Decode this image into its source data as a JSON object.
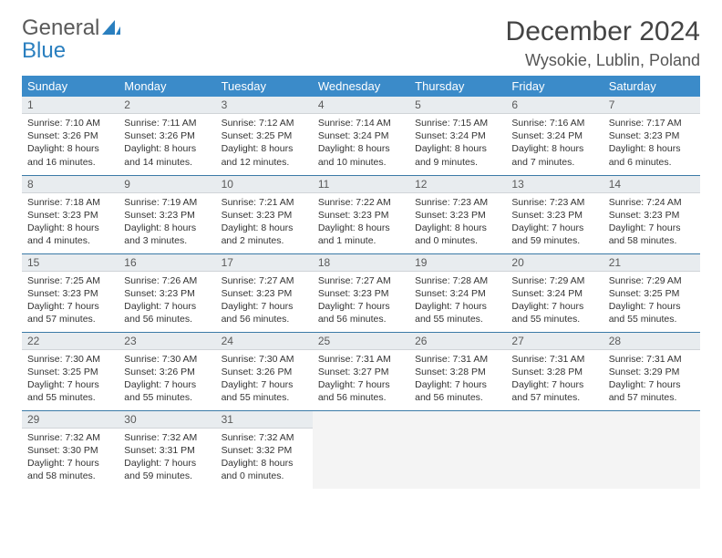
{
  "logo": {
    "line1": "General",
    "line2": "Blue"
  },
  "title": "December 2024",
  "location": "Wysokie, Lublin, Poland",
  "colors": {
    "header_bg": "#3b8bc9",
    "header_text": "#ffffff",
    "row_divider": "#3b7aa7",
    "daynum_bg": "#e8ecef",
    "logo_gray": "#5a5a5a",
    "logo_blue": "#2a7fbf"
  },
  "weekdays": [
    "Sunday",
    "Monday",
    "Tuesday",
    "Wednesday",
    "Thursday",
    "Friday",
    "Saturday"
  ],
  "days": [
    {
      "n": 1,
      "sunrise": "7:10 AM",
      "sunset": "3:26 PM",
      "daylight": "8 hours and 16 minutes."
    },
    {
      "n": 2,
      "sunrise": "7:11 AM",
      "sunset": "3:26 PM",
      "daylight": "8 hours and 14 minutes."
    },
    {
      "n": 3,
      "sunrise": "7:12 AM",
      "sunset": "3:25 PM",
      "daylight": "8 hours and 12 minutes."
    },
    {
      "n": 4,
      "sunrise": "7:14 AM",
      "sunset": "3:24 PM",
      "daylight": "8 hours and 10 minutes."
    },
    {
      "n": 5,
      "sunrise": "7:15 AM",
      "sunset": "3:24 PM",
      "daylight": "8 hours and 9 minutes."
    },
    {
      "n": 6,
      "sunrise": "7:16 AM",
      "sunset": "3:24 PM",
      "daylight": "8 hours and 7 minutes."
    },
    {
      "n": 7,
      "sunrise": "7:17 AM",
      "sunset": "3:23 PM",
      "daylight": "8 hours and 6 minutes."
    },
    {
      "n": 8,
      "sunrise": "7:18 AM",
      "sunset": "3:23 PM",
      "daylight": "8 hours and 4 minutes."
    },
    {
      "n": 9,
      "sunrise": "7:19 AM",
      "sunset": "3:23 PM",
      "daylight": "8 hours and 3 minutes."
    },
    {
      "n": 10,
      "sunrise": "7:21 AM",
      "sunset": "3:23 PM",
      "daylight": "8 hours and 2 minutes."
    },
    {
      "n": 11,
      "sunrise": "7:22 AM",
      "sunset": "3:23 PM",
      "daylight": "8 hours and 1 minute."
    },
    {
      "n": 12,
      "sunrise": "7:23 AM",
      "sunset": "3:23 PM",
      "daylight": "8 hours and 0 minutes."
    },
    {
      "n": 13,
      "sunrise": "7:23 AM",
      "sunset": "3:23 PM",
      "daylight": "7 hours and 59 minutes."
    },
    {
      "n": 14,
      "sunrise": "7:24 AM",
      "sunset": "3:23 PM",
      "daylight": "7 hours and 58 minutes."
    },
    {
      "n": 15,
      "sunrise": "7:25 AM",
      "sunset": "3:23 PM",
      "daylight": "7 hours and 57 minutes."
    },
    {
      "n": 16,
      "sunrise": "7:26 AM",
      "sunset": "3:23 PM",
      "daylight": "7 hours and 56 minutes."
    },
    {
      "n": 17,
      "sunrise": "7:27 AM",
      "sunset": "3:23 PM",
      "daylight": "7 hours and 56 minutes."
    },
    {
      "n": 18,
      "sunrise": "7:27 AM",
      "sunset": "3:23 PM",
      "daylight": "7 hours and 56 minutes."
    },
    {
      "n": 19,
      "sunrise": "7:28 AM",
      "sunset": "3:24 PM",
      "daylight": "7 hours and 55 minutes."
    },
    {
      "n": 20,
      "sunrise": "7:29 AM",
      "sunset": "3:24 PM",
      "daylight": "7 hours and 55 minutes."
    },
    {
      "n": 21,
      "sunrise": "7:29 AM",
      "sunset": "3:25 PM",
      "daylight": "7 hours and 55 minutes."
    },
    {
      "n": 22,
      "sunrise": "7:30 AM",
      "sunset": "3:25 PM",
      "daylight": "7 hours and 55 minutes."
    },
    {
      "n": 23,
      "sunrise": "7:30 AM",
      "sunset": "3:26 PM",
      "daylight": "7 hours and 55 minutes."
    },
    {
      "n": 24,
      "sunrise": "7:30 AM",
      "sunset": "3:26 PM",
      "daylight": "7 hours and 55 minutes."
    },
    {
      "n": 25,
      "sunrise": "7:31 AM",
      "sunset": "3:27 PM",
      "daylight": "7 hours and 56 minutes."
    },
    {
      "n": 26,
      "sunrise": "7:31 AM",
      "sunset": "3:28 PM",
      "daylight": "7 hours and 56 minutes."
    },
    {
      "n": 27,
      "sunrise": "7:31 AM",
      "sunset": "3:28 PM",
      "daylight": "7 hours and 57 minutes."
    },
    {
      "n": 28,
      "sunrise": "7:31 AM",
      "sunset": "3:29 PM",
      "daylight": "7 hours and 57 minutes."
    },
    {
      "n": 29,
      "sunrise": "7:32 AM",
      "sunset": "3:30 PM",
      "daylight": "7 hours and 58 minutes."
    },
    {
      "n": 30,
      "sunrise": "7:32 AM",
      "sunset": "3:31 PM",
      "daylight": "7 hours and 59 minutes."
    },
    {
      "n": 31,
      "sunrise": "7:32 AM",
      "sunset": "3:32 PM",
      "daylight": "8 hours and 0 minutes."
    }
  ],
  "grid": {
    "start_weekday": 0,
    "rows": 5,
    "cols": 7
  },
  "labels": {
    "sunrise": "Sunrise:",
    "sunset": "Sunset:",
    "daylight": "Daylight:"
  }
}
